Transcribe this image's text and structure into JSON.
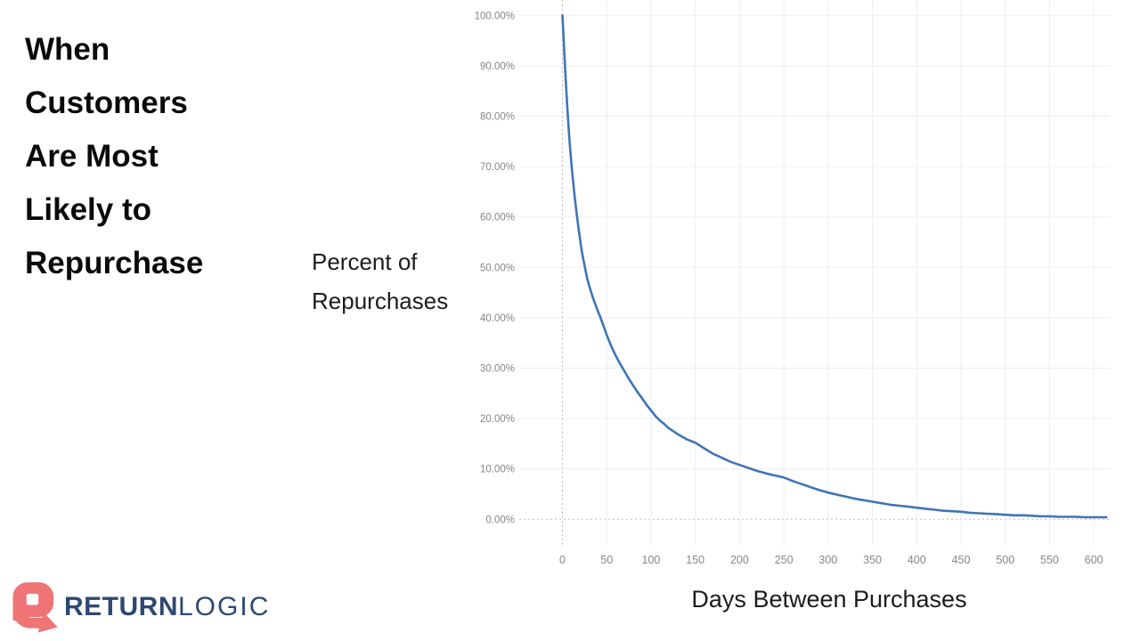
{
  "page": {
    "background": "#ffffff"
  },
  "title": {
    "lines": [
      "When",
      "Customers",
      "Are Most",
      "Likely to",
      "Repurchase"
    ]
  },
  "axis_captions": {
    "y_line1": "Percent of",
    "y_line2": "Repurchases"
  },
  "logo": {
    "brand_bold": "RETURN",
    "brand_light": "LOGIC",
    "icon_color": "#ef7475",
    "text_color": "#2e4872"
  },
  "chart_data": {
    "type": "line",
    "title": "",
    "grid": true,
    "legend": "none",
    "x_axis": {
      "label": "Days Between Purchases",
      "range": [
        -47,
        618
      ],
      "ticks": [
        {
          "v": 0,
          "label": "0"
        },
        {
          "v": 50,
          "label": "50"
        },
        {
          "v": 100,
          "label": "100"
        },
        {
          "v": 150,
          "label": "150"
        },
        {
          "v": 200,
          "label": "200"
        },
        {
          "v": 250,
          "label": "250"
        },
        {
          "v": 300,
          "label": "300"
        },
        {
          "v": 350,
          "label": "350"
        },
        {
          "v": 400,
          "label": "400"
        },
        {
          "v": 450,
          "label": "450"
        },
        {
          "v": 500,
          "label": "500"
        },
        {
          "v": 550,
          "label": "550"
        },
        {
          "v": 600,
          "label": "600"
        }
      ]
    },
    "y_axis": {
      "label": "Percent of Repurchases",
      "range": [
        0,
        100
      ],
      "ticks": [
        {
          "v": 0,
          "label": "0.00%"
        },
        {
          "v": 10,
          "label": "10.00%"
        },
        {
          "v": 20,
          "label": "20.00%"
        },
        {
          "v": 30,
          "label": "30.00%"
        },
        {
          "v": 40,
          "label": "40.00%"
        },
        {
          "v": 50,
          "label": "50.00%"
        },
        {
          "v": 60,
          "label": "60.00%"
        },
        {
          "v": 70,
          "label": "70.00%"
        },
        {
          "v": 80,
          "label": "80.00%"
        },
        {
          "v": 90,
          "label": "90.00%"
        },
        {
          "v": 100,
          "label": "100.00%"
        }
      ]
    },
    "series": [
      {
        "name": "Percent of Repurchases",
        "color": "#4075b4",
        "points": [
          [
            0,
            100
          ],
          [
            1,
            96.5
          ],
          [
            2,
            93
          ],
          [
            3,
            89.5
          ],
          [
            4,
            86.3
          ],
          [
            5,
            83.2
          ],
          [
            6,
            80.3
          ],
          [
            7,
            77.6
          ],
          [
            8,
            75
          ],
          [
            9,
            72.9
          ],
          [
            10,
            70.9
          ],
          [
            12,
            67.2
          ],
          [
            14,
            63.8
          ],
          [
            16,
            60.8
          ],
          [
            18,
            58
          ],
          [
            20,
            55.4
          ],
          [
            22,
            53
          ],
          [
            25,
            50.3
          ],
          [
            28,
            47.8
          ],
          [
            31,
            45.9
          ],
          [
            34,
            44.2
          ],
          [
            37,
            42.7
          ],
          [
            40,
            41.3
          ],
          [
            43,
            40
          ],
          [
            46,
            38.6
          ],
          [
            50,
            36.6
          ],
          [
            55,
            34.4
          ],
          [
            60,
            32.5
          ],
          [
            65,
            30.9
          ],
          [
            70,
            29.4
          ],
          [
            75,
            27.9
          ],
          [
            80,
            26.5
          ],
          [
            85,
            25.2
          ],
          [
            90,
            24
          ],
          [
            95,
            22.7
          ],
          [
            100,
            21.6
          ],
          [
            105,
            20.5
          ],
          [
            110,
            19.6
          ],
          [
            115,
            18.9
          ],
          [
            120,
            18.1
          ],
          [
            125,
            17.5
          ],
          [
            130,
            16.9
          ],
          [
            140,
            15.9
          ],
          [
            150,
            15.2
          ],
          [
            160,
            14.1
          ],
          [
            170,
            13
          ],
          [
            180,
            12.2
          ],
          [
            190,
            11.4
          ],
          [
            200,
            10.8
          ],
          [
            210,
            10.2
          ],
          [
            220,
            9.6
          ],
          [
            230,
            9.1
          ],
          [
            240,
            8.7
          ],
          [
            250,
            8.3
          ],
          [
            260,
            7.6
          ],
          [
            270,
            7
          ],
          [
            280,
            6.4
          ],
          [
            290,
            5.8
          ],
          [
            300,
            5.3
          ],
          [
            310,
            4.9
          ],
          [
            320,
            4.5
          ],
          [
            330,
            4.1
          ],
          [
            340,
            3.8
          ],
          [
            350,
            3.5
          ],
          [
            360,
            3.2
          ],
          [
            370,
            2.9
          ],
          [
            380,
            2.7
          ],
          [
            390,
            2.5
          ],
          [
            400,
            2.3
          ],
          [
            410,
            2.1
          ],
          [
            420,
            1.9
          ],
          [
            430,
            1.7
          ],
          [
            440,
            1.6
          ],
          [
            450,
            1.5
          ],
          [
            460,
            1.3
          ],
          [
            470,
            1.2
          ],
          [
            480,
            1.1
          ],
          [
            490,
            1
          ],
          [
            500,
            0.9
          ],
          [
            510,
            0.8
          ],
          [
            520,
            0.8
          ],
          [
            530,
            0.7
          ],
          [
            540,
            0.6
          ],
          [
            550,
            0.6
          ],
          [
            560,
            0.5
          ],
          [
            570,
            0.5
          ],
          [
            580,
            0.5
          ],
          [
            590,
            0.4
          ],
          [
            600,
            0.4
          ],
          [
            614,
            0.4
          ]
        ]
      }
    ]
  }
}
